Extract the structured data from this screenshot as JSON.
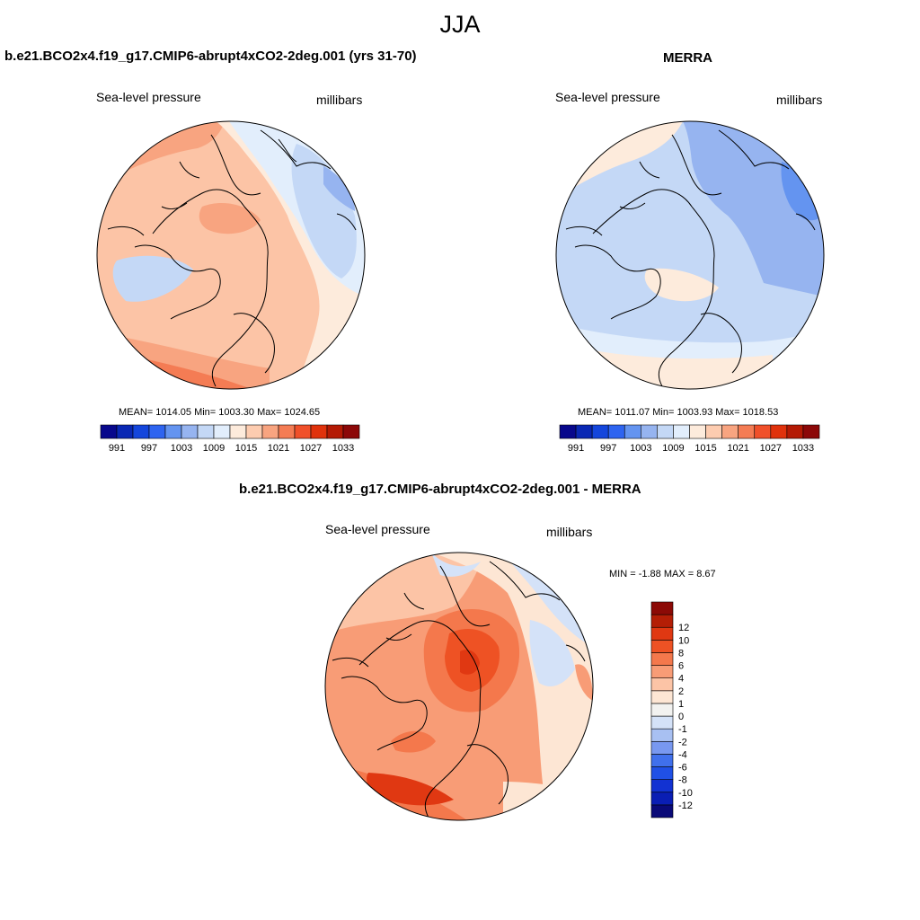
{
  "season": "JJA",
  "panels": [
    {
      "title": "b.e21.BCO2x4.f19_g17.CMIP6-abrupt4xCO2-2deg.001 (yrs 31-70)",
      "left_label": "Sea-level pressure",
      "right_label": "millibars",
      "stats": "MEAN= 1014.05  Min= 1003.30  Max= 1024.65"
    },
    {
      "title": "MERRA",
      "left_label": "Sea-level pressure",
      "right_label": "millibars",
      "stats": "MEAN= 1011.07  Min= 1003.93  Max= 1018.53"
    },
    {
      "title": "b.e21.BCO2x4.f19_g17.CMIP6-abrupt4xCO2-2deg.001 - MERRA",
      "left_label": "Sea-level pressure",
      "right_label": "millibars",
      "stats": "MIN =  -1.88 MAX =   8.67"
    }
  ],
  "colorbar_abs": {
    "colors": [
      "#08088c",
      "#0a28b4",
      "#1446dc",
      "#2e64f0",
      "#6494f0",
      "#96b4f0",
      "#c4d8f6",
      "#e2eefc",
      "#fdebdc",
      "#fdccb0",
      "#f8a480",
      "#f47c54",
      "#f0502a",
      "#e0320c",
      "#b41a04",
      "#8c0808"
    ],
    "tick_labels": [
      "991",
      "997",
      "1003",
      "1009",
      "1015",
      "1021",
      "1027",
      "1033"
    ]
  },
  "colorbar_diff": {
    "colors": [
      "#0a0a78",
      "#0a1eb4",
      "#1232d2",
      "#2050e6",
      "#4070ec",
      "#7898f0",
      "#a8c0f2",
      "#d4e2f8",
      "#f2f2f0",
      "#fde6d4",
      "#fcc4a6",
      "#f89c76",
      "#f4784c",
      "#ee5224",
      "#e03812",
      "#b41e06",
      "#8c0a06"
    ],
    "tick_labels": [
      "-12",
      "-10",
      "-8",
      "-6",
      "-4",
      "-2",
      "-1",
      "0",
      "1",
      "2",
      "4",
      "6",
      "8",
      "10",
      "12"
    ]
  },
  "map_fill": {
    "panel1_base": "#fcc4a6",
    "panel2_base": "#c4d8f6",
    "panel3_base": "#f89c76"
  }
}
